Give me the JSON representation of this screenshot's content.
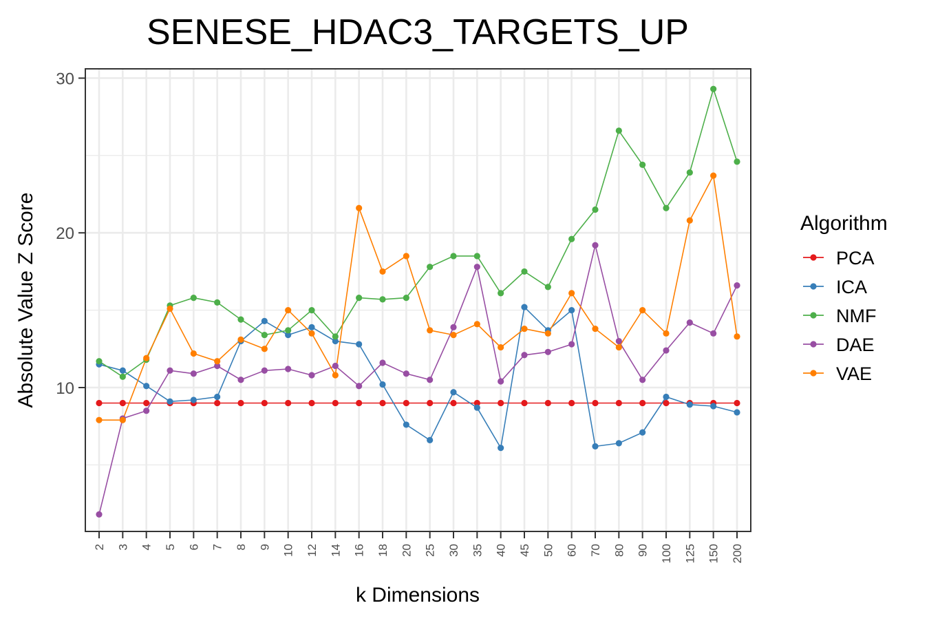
{
  "chart_data": {
    "type": "line",
    "title": "SENESE_HDAC3_TARGETS_UP",
    "xlabel": "k Dimensions",
    "ylabel": "Absolute Value Z Score",
    "categories": [
      "2",
      "3",
      "4",
      "5",
      "6",
      "7",
      "8",
      "9",
      "10",
      "12",
      "14",
      "16",
      "18",
      "20",
      "25",
      "30",
      "35",
      "40",
      "45",
      "50",
      "60",
      "70",
      "80",
      "90",
      "100",
      "125",
      "150",
      "200"
    ],
    "yticks": [
      10,
      20,
      30
    ],
    "yticklabels": [
      "10",
      "20",
      "30"
    ],
    "ylim": [
      0.7,
      30.6
    ],
    "grid": true,
    "legend": {
      "title": "Algorithm",
      "position": "right"
    },
    "series": [
      {
        "name": "PCA",
        "color": "#E41A1C",
        "values": [
          9.0,
          9.0,
          9.0,
          9.0,
          9.0,
          9.0,
          9.0,
          9.0,
          9.0,
          9.0,
          9.0,
          9.0,
          9.0,
          9.0,
          9.0,
          9.0,
          9.0,
          9.0,
          9.0,
          9.0,
          9.0,
          9.0,
          9.0,
          9.0,
          9.0,
          9.0,
          9.0,
          9.0
        ]
      },
      {
        "name": "ICA",
        "color": "#377EB8",
        "values": [
          11.5,
          11.1,
          10.1,
          9.1,
          9.2,
          9.4,
          13.0,
          14.3,
          13.4,
          13.9,
          13.0,
          12.8,
          10.2,
          7.6,
          6.6,
          9.7,
          8.7,
          6.1,
          15.2,
          13.7,
          15.0,
          6.2,
          6.4,
          7.1,
          9.4,
          8.9,
          8.8,
          8.4
        ]
      },
      {
        "name": "NMF",
        "color": "#4DAF4A",
        "values": [
          11.7,
          10.7,
          11.8,
          15.3,
          15.8,
          15.5,
          14.4,
          13.4,
          13.7,
          15.0,
          13.3,
          15.8,
          15.7,
          15.8,
          17.8,
          18.5,
          18.5,
          16.1,
          17.5,
          16.5,
          19.6,
          21.5,
          26.6,
          24.4,
          21.6,
          23.9,
          29.3,
          24.6
        ]
      },
      {
        "name": "DAE",
        "color": "#984EA3",
        "values": [
          1.8,
          8.0,
          8.5,
          11.1,
          10.9,
          11.4,
          10.5,
          11.1,
          11.2,
          10.8,
          11.4,
          10.1,
          11.6,
          10.9,
          10.5,
          13.9,
          17.8,
          10.4,
          12.1,
          12.3,
          12.8,
          19.2,
          13.0,
          10.5,
          12.4,
          14.2,
          13.5,
          16.6
        ]
      },
      {
        "name": "VAE",
        "color": "#FF7F00",
        "values": [
          7.9,
          7.9,
          11.9,
          15.1,
          12.2,
          11.7,
          13.1,
          12.5,
          15.0,
          13.5,
          10.8,
          21.6,
          17.5,
          18.5,
          13.7,
          13.4,
          14.1,
          12.6,
          13.8,
          13.5,
          16.1,
          13.8,
          12.6,
          15.0,
          13.5,
          20.8,
          23.7,
          13.3
        ]
      }
    ]
  }
}
